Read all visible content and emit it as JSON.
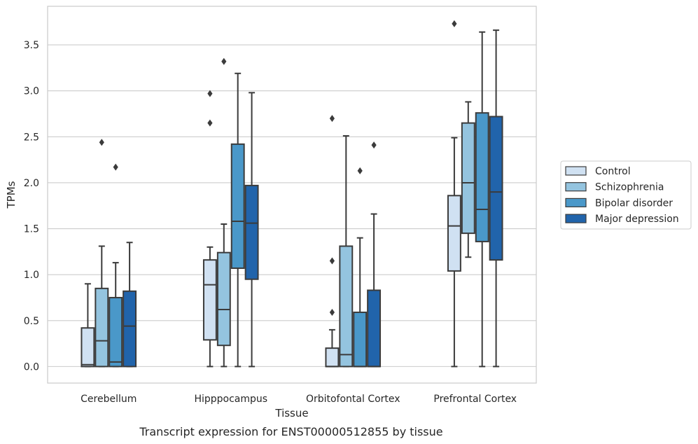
{
  "caption": "Transcript expression for ENST00000512855 by tissue",
  "chart_data": {
    "type": "box",
    "title": "",
    "xlabel": "Tissue",
    "ylabel": "TPMs",
    "ylim": [
      -0.18,
      3.92
    ],
    "yticks": [
      0.0,
      0.5,
      1.0,
      1.5,
      2.0,
      2.5,
      3.0,
      3.5
    ],
    "ytick_labels": [
      "0.0",
      "0.5",
      "1.0",
      "1.5",
      "2.0",
      "2.5",
      "3.0",
      "3.5"
    ],
    "grid": "horizontal",
    "legend_position": "right",
    "categories": [
      "Cerebellum",
      "Hipppocampus",
      "Orbitofontal Cortex",
      "Prefrontal Cortex"
    ],
    "series": [
      {
        "name": "Control",
        "color": "#d0e1f2",
        "boxes": [
          {
            "whislo": 0.0,
            "q1": 0.0,
            "med": 0.02,
            "q3": 0.42,
            "whishi": 0.9,
            "fliers": []
          },
          {
            "whislo": 0.0,
            "q1": 0.29,
            "med": 0.89,
            "q3": 1.16,
            "whishi": 1.3,
            "fliers": [
              2.65,
              2.97
            ]
          },
          {
            "whislo": 0.0,
            "q1": 0.0,
            "med": 0.0,
            "q3": 0.2,
            "whishi": 0.4,
            "fliers": [
              0.59,
              1.15,
              2.7
            ]
          },
          {
            "whislo": 0.0,
            "q1": 1.04,
            "med": 1.53,
            "q3": 1.86,
            "whishi": 2.49,
            "fliers": [
              3.73
            ]
          }
        ]
      },
      {
        "name": "Schizophrenia",
        "color": "#94c4df",
        "boxes": [
          {
            "whislo": 0.0,
            "q1": 0.0,
            "med": 0.28,
            "q3": 0.85,
            "whishi": 1.31,
            "fliers": [
              2.44
            ]
          },
          {
            "whislo": 0.0,
            "q1": 0.23,
            "med": 0.62,
            "q3": 1.24,
            "whishi": 1.55,
            "fliers": [
              3.32
            ]
          },
          {
            "whislo": 0.0,
            "q1": 0.0,
            "med": 0.13,
            "q3": 1.31,
            "whishi": 2.51,
            "fliers": []
          },
          {
            "whislo": 1.19,
            "q1": 1.45,
            "med": 2.0,
            "q3": 2.65,
            "whishi": 2.88,
            "fliers": []
          }
        ]
      },
      {
        "name": "Bipolar disorder",
        "color": "#4a98c9",
        "boxes": [
          {
            "whislo": 0.0,
            "q1": 0.0,
            "med": 0.05,
            "q3": 0.75,
            "whishi": 1.13,
            "fliers": [
              2.17
            ]
          },
          {
            "whislo": 0.0,
            "q1": 1.07,
            "med": 1.58,
            "q3": 2.42,
            "whishi": 3.19,
            "fliers": []
          },
          {
            "whislo": 0.0,
            "q1": 0.0,
            "med": 0.0,
            "q3": 0.59,
            "whishi": 1.4,
            "fliers": [
              2.13
            ]
          },
          {
            "whislo": 0.0,
            "q1": 1.36,
            "med": 1.71,
            "q3": 2.76,
            "whishi": 3.64,
            "fliers": []
          }
        ]
      },
      {
        "name": "Major depression",
        "color": "#2164ab",
        "boxes": [
          {
            "whislo": 0.0,
            "q1": 0.0,
            "med": 0.44,
            "q3": 0.82,
            "whishi": 1.35,
            "fliers": []
          },
          {
            "whislo": 0.0,
            "q1": 0.95,
            "med": 1.56,
            "q3": 1.97,
            "whishi": 2.98,
            "fliers": []
          },
          {
            "whislo": 0.0,
            "q1": 0.0,
            "med": 0.0,
            "q3": 0.83,
            "whishi": 1.66,
            "fliers": [
              2.41
            ]
          },
          {
            "whislo": 0.0,
            "q1": 1.16,
            "med": 1.9,
            "q3": 2.72,
            "whishi": 3.66,
            "fliers": []
          }
        ]
      }
    ]
  }
}
